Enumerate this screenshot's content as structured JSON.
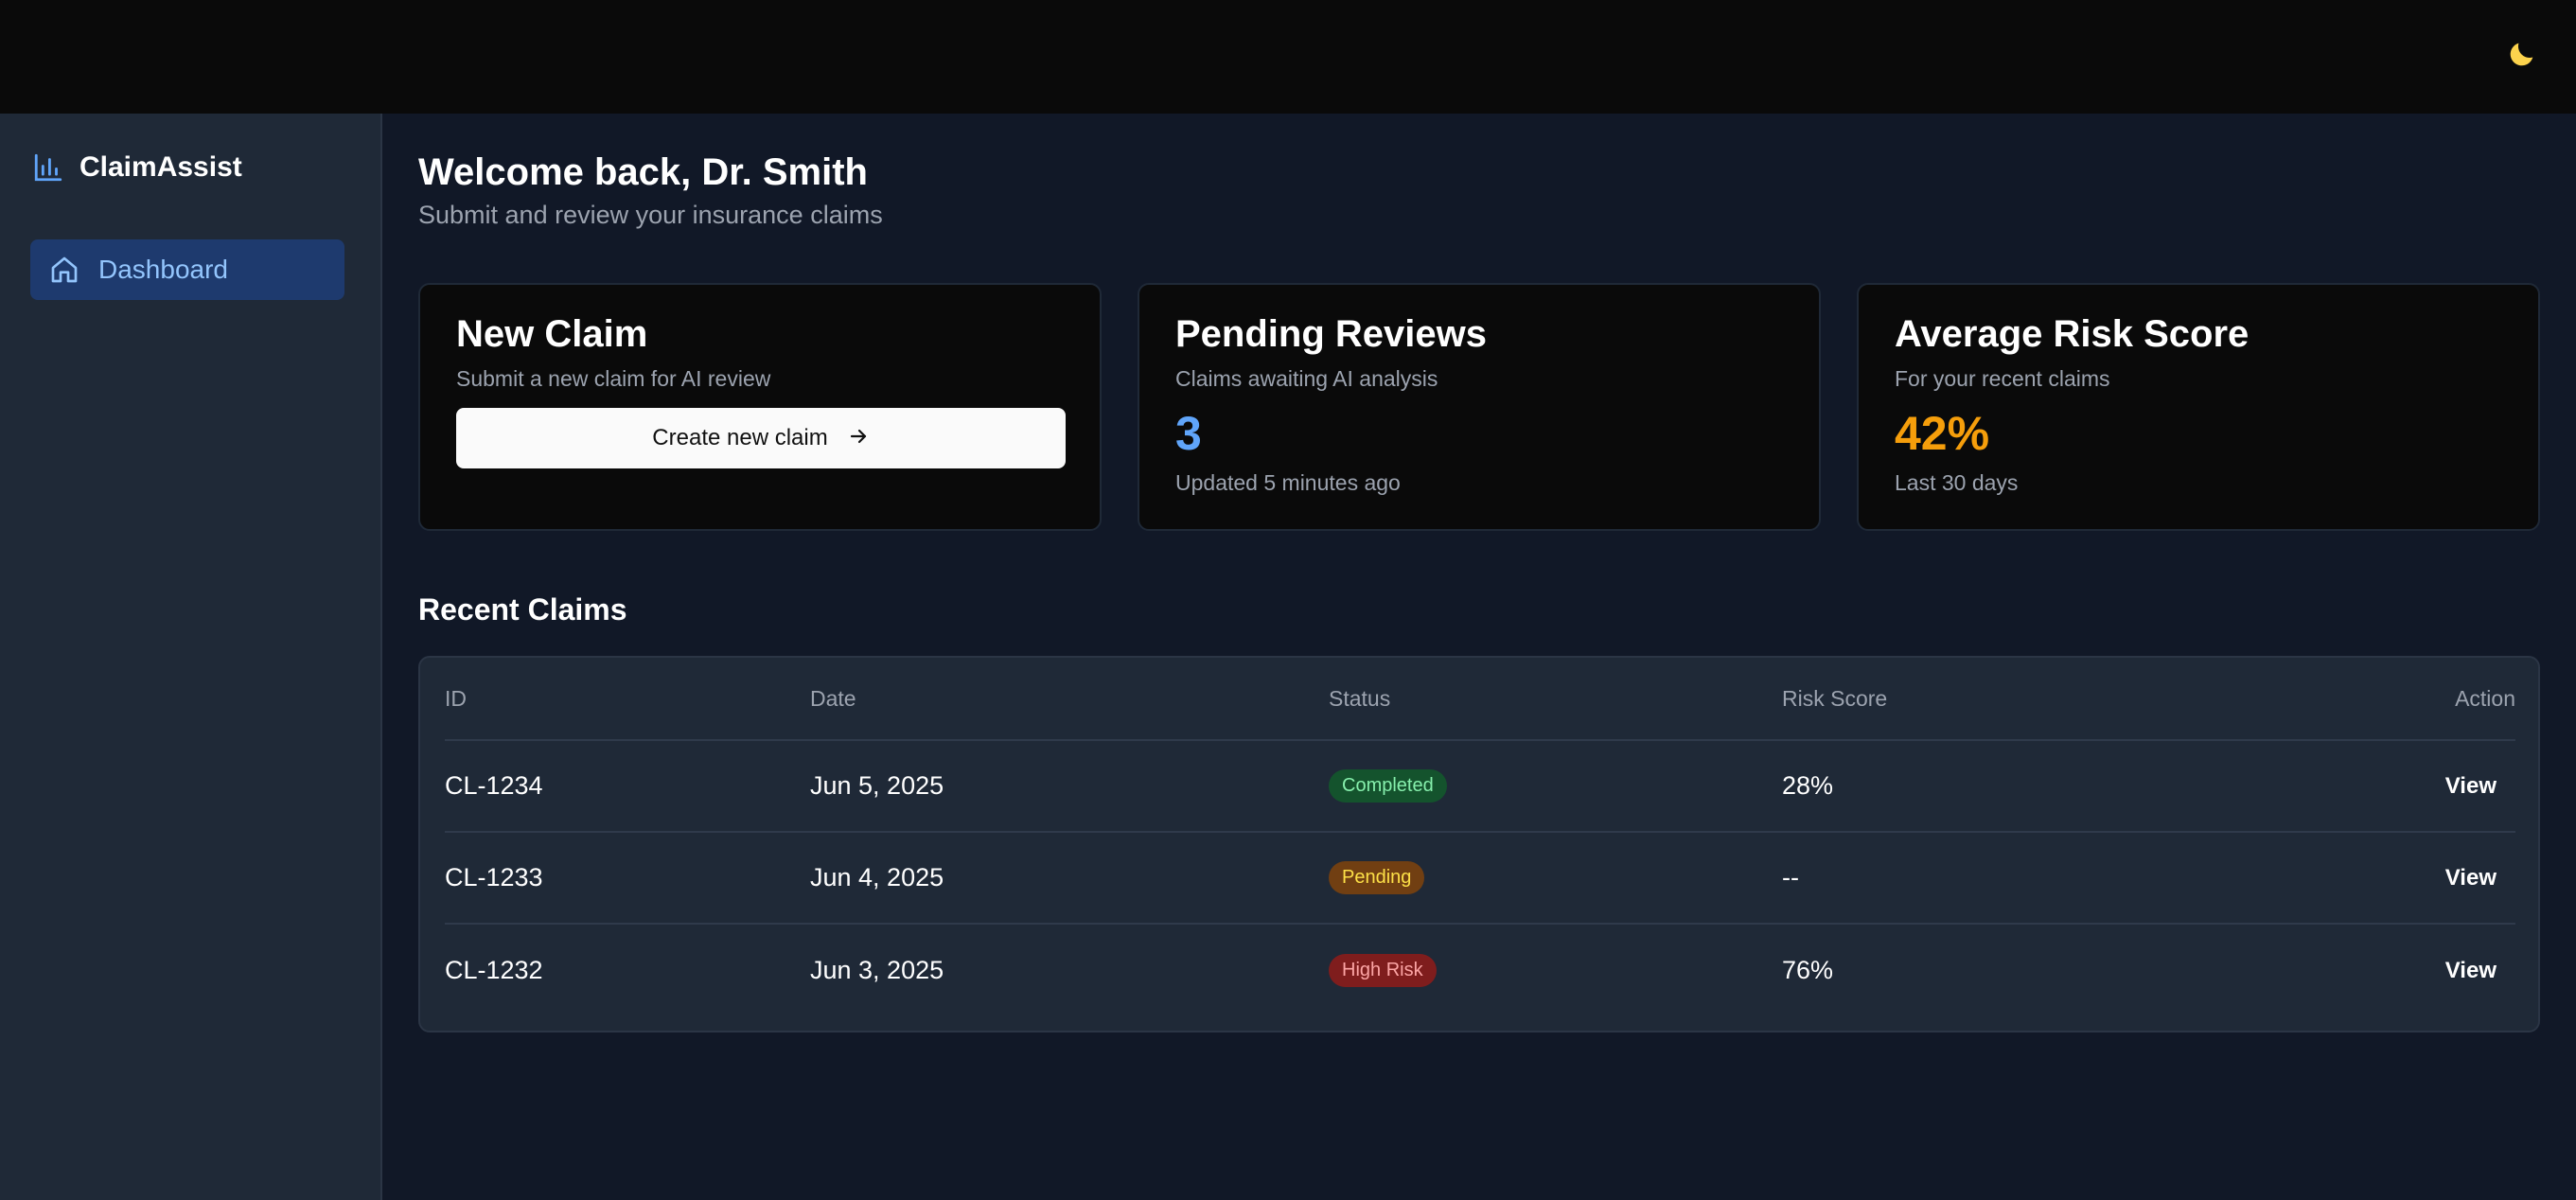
{
  "brand": {
    "name": "ClaimAssist",
    "icon": "bar-chart-icon",
    "accent": "#3b82f6"
  },
  "nav": {
    "items": [
      {
        "label": "Dashboard",
        "icon": "home-icon",
        "active": true
      }
    ]
  },
  "header": {
    "theme_icon": "moon-icon"
  },
  "welcome": {
    "title": "Welcome back, Dr. Smith",
    "subtitle": "Submit and review your insurance claims"
  },
  "cards": {
    "new_claim": {
      "title": "New Claim",
      "description": "Submit a new claim for AI review",
      "button_label": "Create new claim",
      "button_icon": "arrow-right-icon"
    },
    "pending_reviews": {
      "title": "Pending Reviews",
      "description": "Claims awaiting AI analysis",
      "value": "3",
      "value_color": "#60a5fa",
      "footnote": "Updated 5 minutes ago"
    },
    "average_risk": {
      "title": "Average Risk Score",
      "description": "For your recent claims",
      "value": "42%",
      "value_color": "#f59e0b",
      "footnote": "Last 30 days"
    }
  },
  "recent_claims": {
    "title": "Recent Claims",
    "columns": [
      "ID",
      "Date",
      "Status",
      "Risk Score",
      "Action"
    ],
    "rows": [
      {
        "id": "CL-1234",
        "date": "Jun 5, 2025",
        "status": "Completed",
        "risk": "28%",
        "action": "View"
      },
      {
        "id": "CL-1233",
        "date": "Jun 4, 2025",
        "status": "Pending",
        "risk": "--",
        "action": "View"
      },
      {
        "id": "CL-1232",
        "date": "Jun 3, 2025",
        "status": "High Risk",
        "risk": "76%",
        "action": "View"
      }
    ]
  }
}
